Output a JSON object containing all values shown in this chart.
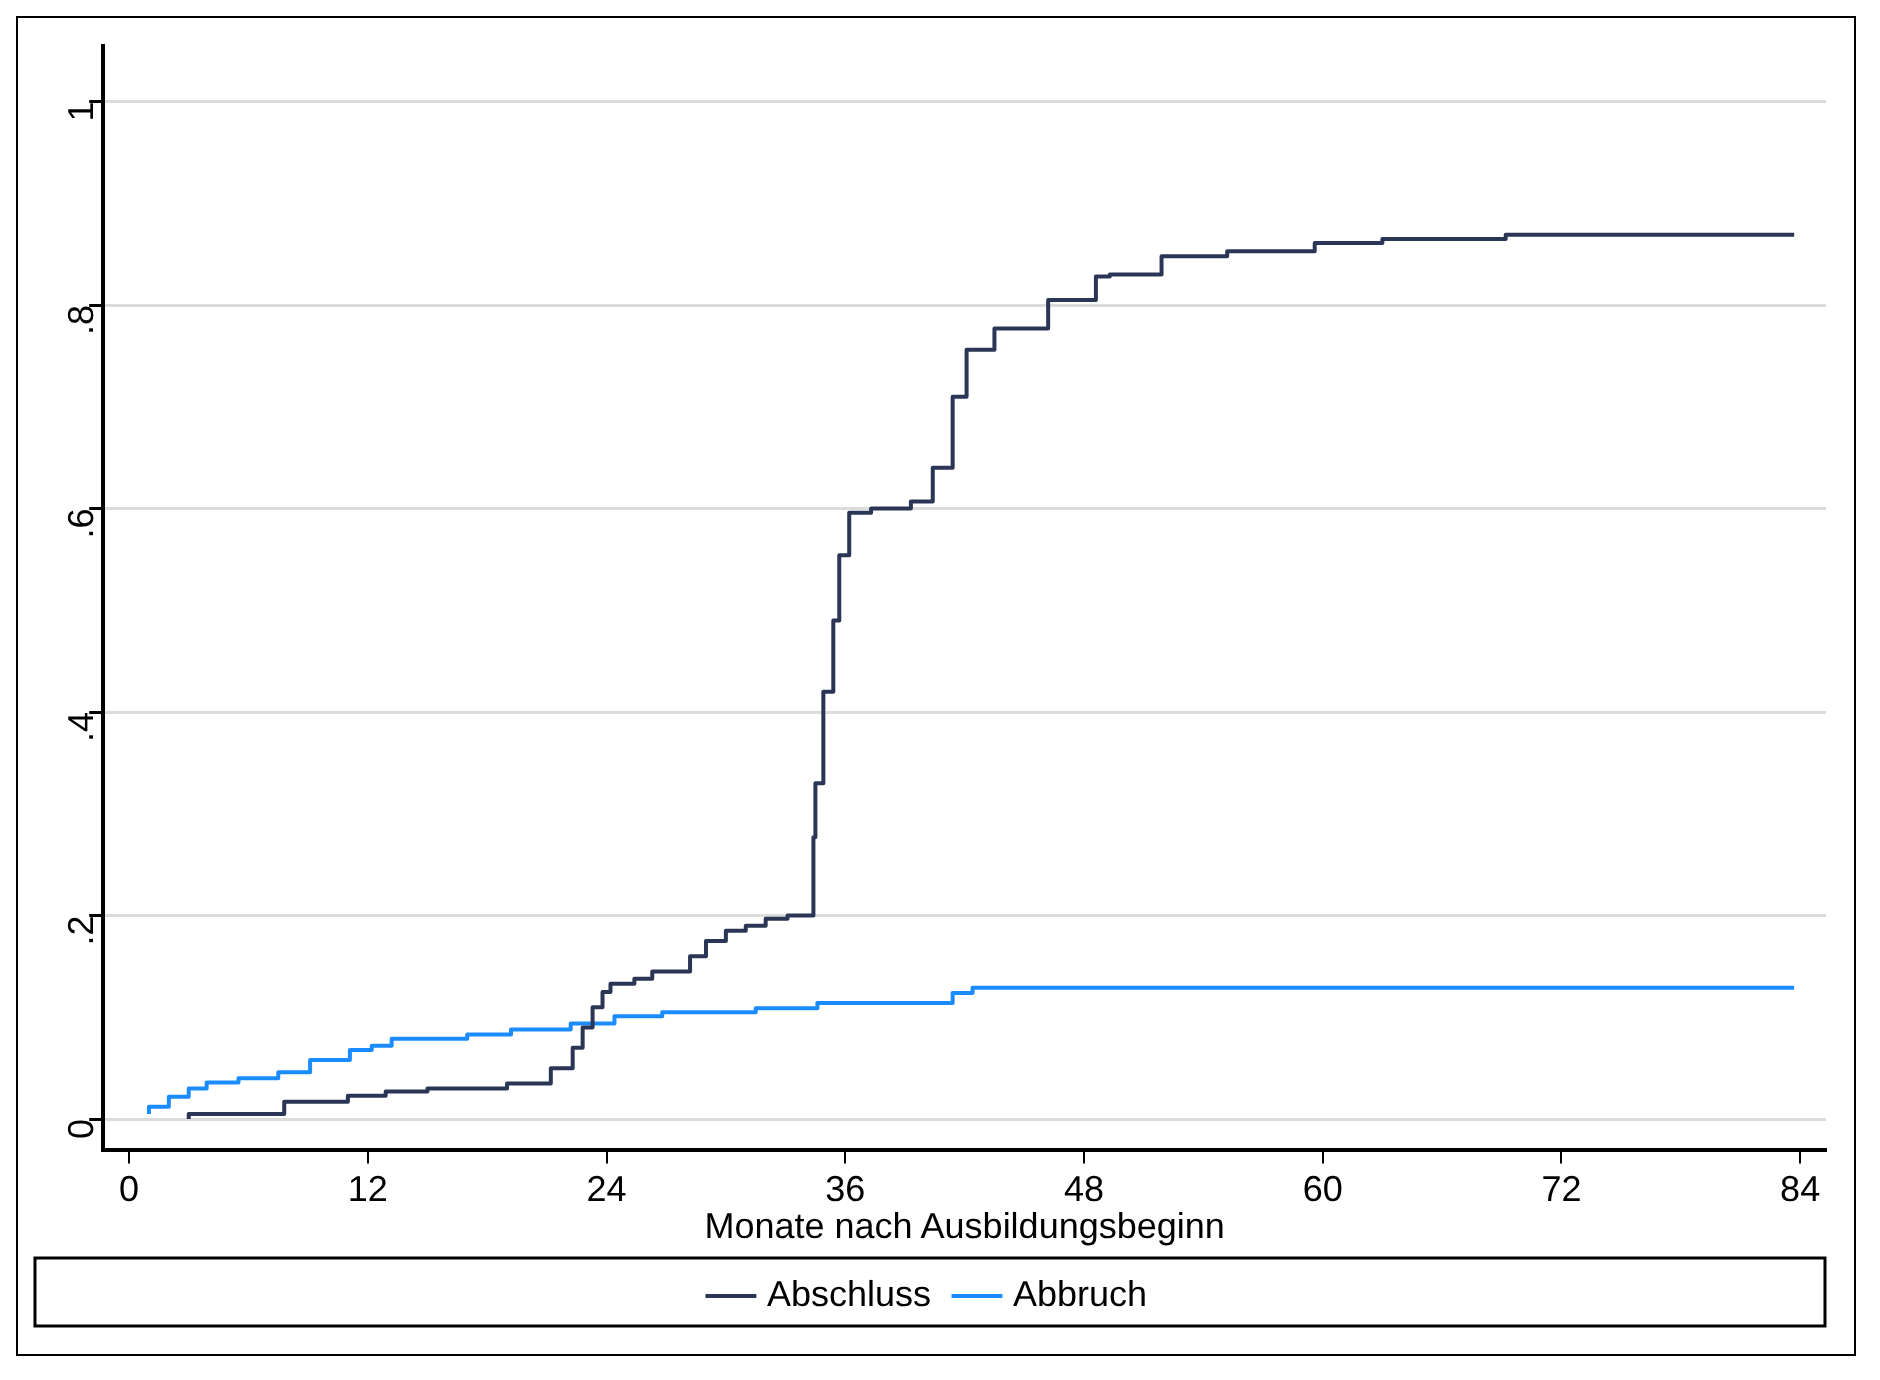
{
  "chart_data": {
    "type": "step",
    "xlabel": "Monate nach Ausbildungsbeginn",
    "xlim": [
      -1.3,
      85.3
    ],
    "xticks": [
      0,
      12,
      24,
      36,
      48,
      60,
      72,
      84
    ],
    "ylim": [
      -0.03,
      1.055
    ],
    "yticks": [
      0,
      {
        "value": 0.2,
        "label": ".2"
      },
      {
        "value": 0.4,
        "label": ".4"
      },
      {
        "value": 0.6,
        "label": ".6"
      },
      {
        "value": 0.8,
        "label": ".8"
      },
      1
    ],
    "grid": "y",
    "legend": "bottom",
    "marker": "none",
    "line_style": "solid",
    "series": [
      {
        "name": "Abschluss",
        "color": "#2b3656",
        "x": [
          3,
          7.8,
          11,
          12.9,
          15,
          19,
          21.2,
          22.3,
          22.8,
          23.3,
          23.8,
          24.2,
          25.4,
          26.3,
          28.2,
          29,
          30,
          31,
          32,
          33.1,
          34.4,
          34.5,
          34.9,
          35.4,
          35.7,
          36.2,
          37.3,
          39.3,
          40.4,
          41.4,
          42.1,
          43.5,
          46.2,
          48.6,
          49.3,
          51.9,
          55.2,
          59.6,
          63,
          69.2,
          77.9,
          83.7
        ],
        "values": [
          0,
          0.005,
          0.017,
          0.023,
          0.027,
          0.03,
          0.035,
          0.05,
          0.07,
          0.09,
          0.11,
          0.125,
          0.133,
          0.138,
          0.145,
          0.16,
          0.175,
          0.185,
          0.19,
          0.197,
          0.2,
          0.277,
          0.33,
          0.42,
          0.49,
          0.554,
          0.596,
          0.6,
          0.607,
          0.64,
          0.71,
          0.756,
          0.777,
          0.805,
          0.828,
          0.83,
          0.848,
          0.853,
          0.861,
          0.865,
          0.869,
          0.869
        ]
      },
      {
        "name": "Abbruch",
        "color": "#1a8cff",
        "x": [
          1,
          2,
          3,
          3.9,
          5.5,
          7.5,
          9.1,
          11.1,
          12.2,
          13.2,
          17,
          19.2,
          22.2,
          24.4,
          26.8,
          31.5,
          34.6,
          41.4,
          42.4,
          52.6,
          83.7
        ],
        "values": [
          0.005,
          0.012,
          0.022,
          0.03,
          0.036,
          0.04,
          0.046,
          0.058,
          0.068,
          0.072,
          0.079,
          0.083,
          0.088,
          0.094,
          0.101,
          0.105,
          0.109,
          0.114,
          0.124,
          0.129,
          0.129
        ]
      }
    ]
  }
}
